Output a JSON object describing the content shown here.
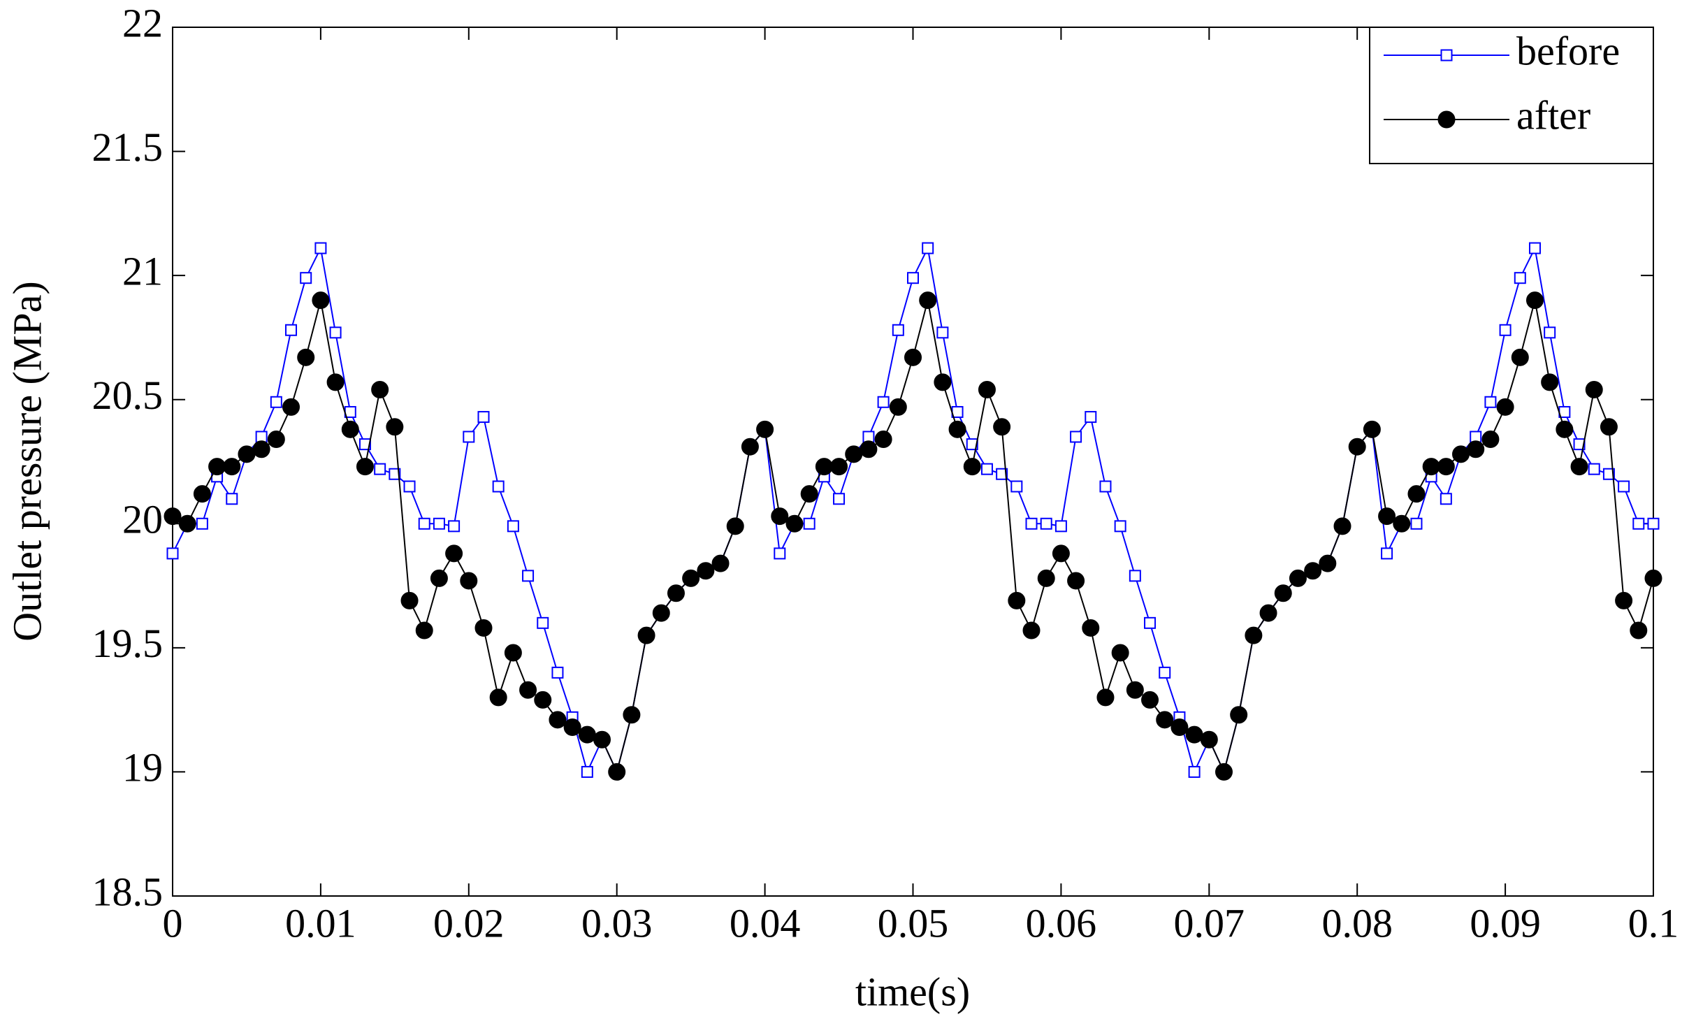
{
  "chart_data": {
    "type": "line",
    "x_label": "time(s)",
    "y_label": "Outlet pressure (MPa)",
    "x": [
      0,
      0.001,
      0.002,
      0.003,
      0.004,
      0.005,
      0.006,
      0.007,
      0.008,
      0.009,
      0.01,
      0.011,
      0.012,
      0.013,
      0.014,
      0.015,
      0.016,
      0.017,
      0.018,
      0.019,
      0.02,
      0.021,
      0.022,
      0.023,
      0.024,
      0.025,
      0.026,
      0.027,
      0.028,
      0.029,
      0.03,
      0.031,
      0.032,
      0.033,
      0.034,
      0.035,
      0.036,
      0.037,
      0.038,
      0.039,
      0.04,
      0.041,
      0.042,
      0.043,
      0.044,
      0.045,
      0.046,
      0.047,
      0.048,
      0.049,
      0.05,
      0.051,
      0.052,
      0.053,
      0.054,
      0.055,
      0.056,
      0.057,
      0.058,
      0.059,
      0.06,
      0.061,
      0.062,
      0.063,
      0.064,
      0.065,
      0.066,
      0.067,
      0.068,
      0.069,
      0.07,
      0.071,
      0.072,
      0.073,
      0.074,
      0.075,
      0.076,
      0.077,
      0.078,
      0.079,
      0.08,
      0.081,
      0.082,
      0.083,
      0.084,
      0.085,
      0.086,
      0.087,
      0.088,
      0.089,
      0.09,
      0.091,
      0.092,
      0.093,
      0.094,
      0.095,
      0.096,
      0.097,
      0.098,
      0.099,
      0.1
    ],
    "series": [
      {
        "name": "before",
        "color": "#0000ff",
        "marker": "square",
        "values": [
          19.88,
          20.0,
          20.0,
          20.19,
          20.1,
          20.28,
          20.35,
          20.49,
          20.78,
          20.99,
          21.11,
          20.77,
          20.45,
          20.32,
          20.22,
          20.2,
          20.15,
          20.0,
          20.0,
          19.99,
          20.35,
          20.43,
          20.15,
          19.99,
          19.79,
          19.6,
          19.4,
          19.22,
          19.0,
          19.13,
          19.0,
          19.23,
          19.55,
          19.64,
          19.72,
          19.78,
          19.81,
          19.84,
          19.99,
          20.31,
          20.38,
          19.88,
          20.0,
          20.0,
          20.19,
          20.1,
          20.28,
          20.35,
          20.49,
          20.78,
          20.99,
          21.11,
          20.77,
          20.45,
          20.32,
          20.22,
          20.2,
          20.15,
          20.0,
          20.0,
          19.99,
          20.35,
          20.43,
          20.15,
          19.99,
          19.79,
          19.6,
          19.4,
          19.22,
          19.0,
          19.13,
          19.0,
          19.23,
          19.55,
          19.64,
          19.72,
          19.78,
          19.81,
          19.84,
          19.99,
          20.31,
          20.38,
          19.88,
          20.0,
          20.0,
          20.19,
          20.1,
          20.28,
          20.35,
          20.49,
          20.78,
          20.99,
          21.11,
          20.77,
          20.45,
          20.32,
          20.22,
          20.2,
          20.15,
          20.0,
          20.0
        ]
      },
      {
        "name": "after",
        "color": "#000000",
        "marker": "circle",
        "values": [
          20.03,
          20.0,
          20.12,
          20.23,
          20.23,
          20.28,
          20.3,
          20.34,
          20.47,
          20.67,
          20.9,
          20.57,
          20.38,
          20.23,
          20.54,
          20.39,
          19.69,
          19.57,
          19.78,
          19.88,
          19.77,
          19.58,
          19.3,
          19.48,
          19.33,
          19.29,
          19.21,
          19.18,
          19.15,
          19.13,
          19.0,
          19.23,
          19.55,
          19.64,
          19.72,
          19.78,
          19.81,
          19.84,
          19.99,
          20.31,
          20.38,
          20.03,
          20.0,
          20.12,
          20.23,
          20.23,
          20.28,
          20.3,
          20.34,
          20.47,
          20.67,
          20.9,
          20.57,
          20.38,
          20.23,
          20.54,
          20.39,
          19.69,
          19.57,
          19.78,
          19.88,
          19.77,
          19.58,
          19.3,
          19.48,
          19.33,
          19.29,
          19.21,
          19.18,
          19.15,
          19.13,
          19.0,
          19.23,
          19.55,
          19.64,
          19.72,
          19.78,
          19.81,
          19.84,
          19.99,
          20.31,
          20.38,
          20.03,
          20.0,
          20.12,
          20.23,
          20.23,
          20.28,
          20.3,
          20.34,
          20.47,
          20.67,
          20.9,
          20.57,
          20.38,
          20.23,
          20.54,
          20.39,
          19.69,
          19.57,
          19.78
        ]
      }
    ],
    "xlim": [
      0,
      0.1
    ],
    "xticks": [
      0,
      0.01,
      0.02,
      0.03,
      0.04,
      0.05,
      0.06,
      0.07,
      0.08,
      0.09,
      0.1
    ],
    "ylim": [
      18.5,
      22
    ],
    "yticks": [
      18.5,
      19,
      19.5,
      20,
      20.5,
      21,
      21.5,
      22
    ],
    "grid": false,
    "legend": "upper right"
  }
}
